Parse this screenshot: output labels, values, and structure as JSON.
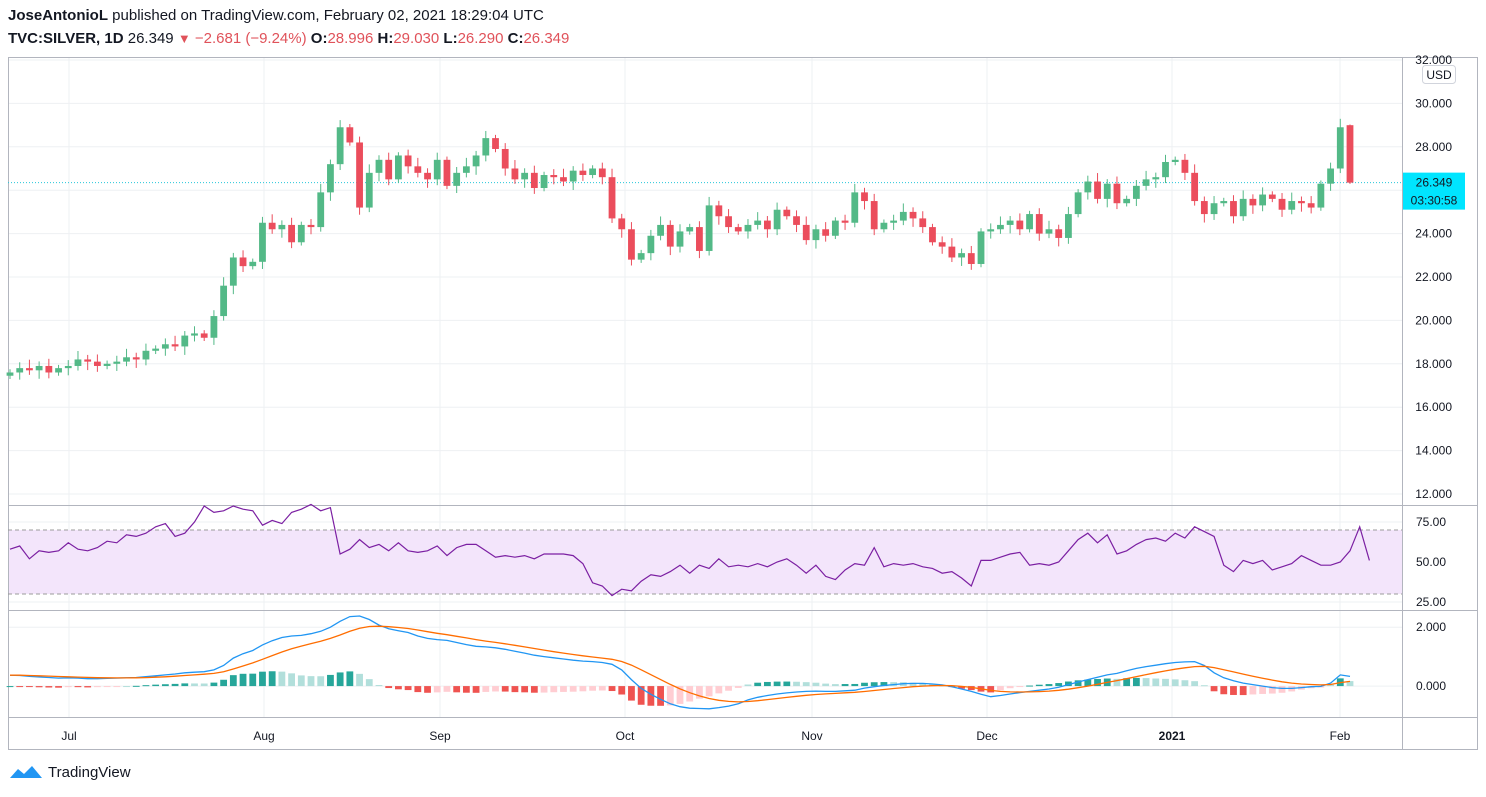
{
  "header": {
    "author": "JoseAntonioL",
    "published_text": "published on TradingView.com, February 02, 2021 18:29:04 UTC",
    "symbol": "TVC:SILVER, 1D",
    "last": "26.349",
    "change": "−2.681 (−9.24%)",
    "o_label": "O:",
    "o_value": "28.996",
    "h_label": "H:",
    "h_value": "29.030",
    "l_label": "L:",
    "l_value": "26.290",
    "c_label": "C:",
    "c_value": "26.349"
  },
  "price_axis": {
    "currency": "USD",
    "last_price_label": "26.349",
    "countdown": "03:30:58"
  },
  "footer": {
    "brand": "TradingView"
  },
  "colors": {
    "up": "#53b987",
    "down": "#eb4d5c",
    "rsi_line": "#7b1fa2",
    "rsi_band": "#f3e5fb",
    "macd_line": "#2196f3",
    "signal_line": "#ff6d00",
    "last_price": "#00e5ff"
  },
  "chart_data": [
    {
      "type": "candlestick",
      "title": "TVC:SILVER, 1D",
      "ylim": [
        12,
        32
      ],
      "y_ticks": [
        "12.000",
        "14.000",
        "16.000",
        "18.000",
        "20.000",
        "22.000",
        "24.000",
        "26.000",
        "28.000",
        "30.000",
        "32.000"
      ],
      "x_ticks": [
        "Jul",
        "Aug",
        "Sep",
        "Oct",
        "Nov",
        "Dec",
        "2021",
        "Feb"
      ],
      "last_price": 26.349,
      "close_series": [
        17.6,
        17.8,
        17.7,
        17.9,
        17.6,
        17.8,
        17.9,
        18.2,
        18.1,
        17.9,
        18.0,
        18.1,
        18.3,
        18.2,
        18.6,
        18.7,
        18.9,
        18.8,
        19.3,
        19.4,
        19.2,
        20.2,
        21.6,
        22.9,
        22.5,
        22.7,
        24.5,
        24.2,
        24.4,
        23.6,
        24.4,
        24.3,
        25.9,
        27.2,
        28.9,
        28.2,
        25.2,
        26.8,
        27.4,
        26.5,
        27.6,
        27.1,
        26.8,
        26.5,
        27.4,
        26.2,
        26.8,
        27.1,
        27.6,
        28.4,
        27.9,
        27.0,
        26.5,
        26.8,
        26.1,
        26.7,
        26.6,
        26.4,
        26.9,
        26.7,
        27.0,
        26.6,
        24.7,
        24.2,
        22.8,
        23.1,
        23.9,
        24.4,
        23.4,
        24.1,
        24.3,
        23.2,
        25.3,
        24.8,
        24.3,
        24.1,
        24.4,
        24.6,
        24.2,
        25.1,
        24.8,
        24.4,
        23.7,
        24.2,
        23.9,
        24.6,
        24.5,
        25.9,
        25.5,
        24.2,
        24.5,
        24.6,
        25.0,
        24.7,
        24.3,
        23.6,
        23.4,
        22.9,
        23.1,
        22.6,
        24.1,
        24.2,
        24.4,
        24.6,
        24.2,
        24.9,
        24.0,
        24.2,
        23.8,
        24.9,
        25.9,
        26.4,
        25.6,
        26.3,
        25.4,
        25.6,
        26.2,
        26.5,
        26.6,
        27.3,
        27.4,
        26.8,
        25.5,
        24.9,
        25.4,
        25.5,
        24.8,
        25.6,
        25.3,
        25.8,
        25.6,
        25.1,
        25.5,
        25.4,
        25.2,
        26.3,
        27.0,
        28.9,
        26.349
      ],
      "rsi_ylim": [
        20,
        85
      ],
      "rsi_ticks": [
        "25.00",
        "50.00",
        "75.00"
      ],
      "rsi_band": [
        30,
        70
      ],
      "rsi": [
        58,
        60,
        52,
        57,
        56,
        57,
        62,
        58,
        57,
        59,
        63,
        62,
        67,
        66,
        68,
        72,
        74,
        66,
        68,
        75,
        85,
        81,
        82,
        85,
        83,
        82,
        73,
        76,
        74,
        81,
        83,
        86,
        82,
        84,
        55,
        58,
        64,
        59,
        61,
        57,
        62,
        57,
        56,
        57,
        60,
        54,
        59,
        61,
        61,
        57,
        53,
        54,
        53,
        54,
        52,
        55,
        55,
        55,
        54,
        49,
        37,
        35,
        29,
        33,
        32,
        38,
        42,
        41,
        44,
        48,
        43,
        48,
        46,
        52,
        47,
        48,
        47,
        49,
        47,
        50,
        52,
        48,
        43,
        48,
        41,
        39,
        45,
        49,
        48,
        59,
        47,
        49,
        48,
        49,
        47,
        46,
        43,
        44,
        40,
        35,
        51,
        51,
        53,
        55,
        56,
        48,
        49,
        48,
        50,
        57,
        64,
        68,
        62,
        67,
        55,
        57,
        61,
        64,
        65,
        63,
        68,
        65,
        72,
        69,
        66,
        48,
        44,
        51,
        49,
        51,
        45,
        47,
        49,
        54,
        51,
        48,
        48,
        50,
        57,
        72,
        51
      ],
      "macd_ylim": [
        -1.05,
        2.55
      ],
      "macd_ticks": [
        "0.000",
        "2.000"
      ],
      "macd": [
        0.37,
        0.36,
        0.33,
        0.31,
        0.29,
        0.27,
        0.28,
        0.27,
        0.25,
        0.25,
        0.26,
        0.27,
        0.28,
        0.29,
        0.32,
        0.35,
        0.38,
        0.41,
        0.45,
        0.47,
        0.49,
        0.55,
        0.7,
        0.95,
        1.1,
        1.21,
        1.4,
        1.54,
        1.65,
        1.7,
        1.72,
        1.78,
        1.86,
        2.0,
        2.2,
        2.36,
        2.38,
        2.26,
        2.07,
        1.95,
        1.88,
        1.82,
        1.7,
        1.62,
        1.58,
        1.55,
        1.48,
        1.41,
        1.35,
        1.33,
        1.3,
        1.25,
        1.18,
        1.12,
        1.05,
        1.0,
        0.96,
        0.92,
        0.88,
        0.85,
        0.83,
        0.8,
        0.74,
        0.55,
        0.22,
        -0.08,
        -0.28,
        -0.45,
        -0.6,
        -0.7,
        -0.75,
        -0.76,
        -0.77,
        -0.73,
        -0.68,
        -0.6,
        -0.47,
        -0.38,
        -0.32,
        -0.27,
        -0.23,
        -0.2,
        -0.18,
        -0.17,
        -0.18,
        -0.18,
        -0.16,
        -0.14,
        -0.07,
        -0.02,
        0.02,
        0.05,
        0.08,
        0.09,
        0.09,
        0.07,
        0.04,
        -0.02,
        -0.1,
        -0.18,
        -0.28,
        -0.36,
        -0.32,
        -0.27,
        -0.22,
        -0.18,
        -0.14,
        -0.1,
        -0.04,
        0.05,
        0.14,
        0.22,
        0.3,
        0.38,
        0.43,
        0.52,
        0.6,
        0.66,
        0.71,
        0.76,
        0.8,
        0.82,
        0.83,
        0.7,
        0.45,
        0.28,
        0.18,
        0.1,
        0.05,
        0.0,
        -0.05,
        -0.08,
        -0.08,
        -0.05,
        -0.02,
        -0.01,
        0.1,
        0.38,
        0.33
      ]
    }
  ]
}
